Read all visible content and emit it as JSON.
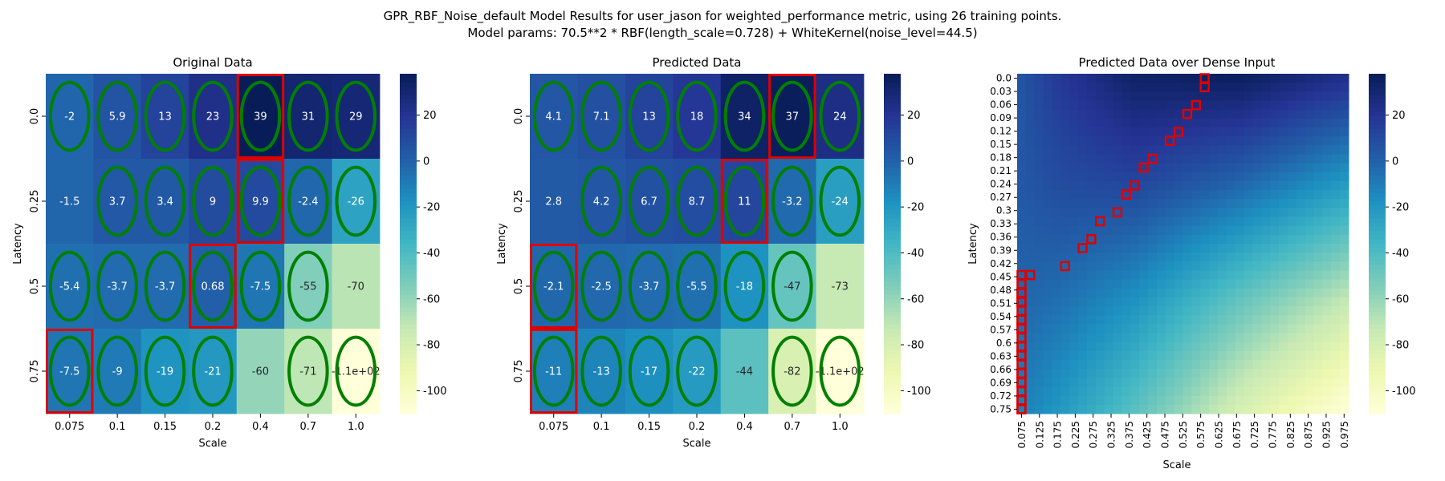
{
  "figure": {
    "title_line1": "GPR_RBF_Noise_default Model Results for user_jason for weighted_performance metric, using 26 training points.",
    "title_line2": "Model params: 70.5**2 * RBF(length_scale=0.728) + WhiteKernel(noise_level=44.5)"
  },
  "colors": {
    "colormap": "YlGnBu",
    "highlight_ellipse": "#008000",
    "highlight_box": "#e00000",
    "text_light": "#ffffff",
    "text_dark": "#262626"
  },
  "chart_data": [
    {
      "type": "heatmap",
      "title": "Original Data",
      "xlabel": "Scale",
      "ylabel": "Latency",
      "x": [
        "0.075",
        "0.1",
        "0.15",
        "0.2",
        "0.4",
        "0.7",
        "1.0"
      ],
      "y": [
        "0.0",
        "0.25",
        "0.5",
        "0.75"
      ],
      "values": [
        [
          -2,
          5.9,
          13,
          23,
          39,
          31,
          29
        ],
        [
          -1.5,
          3.7,
          3.4,
          9,
          9.9,
          -2.4,
          -26
        ],
        [
          -5.4,
          -3.7,
          -3.7,
          0.68,
          -7.5,
          -55,
          -70
        ],
        [
          -7.5,
          -9,
          -19,
          -21,
          -60,
          -71,
          -110
        ]
      ],
      "labels": [
        [
          "-2",
          "5.9",
          "13",
          "23",
          "39",
          "31",
          "29"
        ],
        [
          "-1.5",
          "3.7",
          "3.4",
          "9",
          "9.9",
          "-2.4",
          "-26"
        ],
        [
          "-5.4",
          "-3.7",
          "-3.7",
          "0.68",
          "-7.5",
          "-55",
          "-70"
        ],
        [
          "-7.5",
          "-9",
          "-19",
          "-21",
          "-60",
          "-71",
          "-1.1e+02"
        ]
      ],
      "ellipses": [
        [
          0,
          0
        ],
        [
          0,
          1
        ],
        [
          0,
          2
        ],
        [
          0,
          3
        ],
        [
          0,
          4
        ],
        [
          0,
          5
        ],
        [
          0,
          6
        ],
        [
          1,
          1
        ],
        [
          1,
          2
        ],
        [
          1,
          3
        ],
        [
          1,
          4
        ],
        [
          1,
          5
        ],
        [
          1,
          6
        ],
        [
          2,
          0
        ],
        [
          2,
          1
        ],
        [
          2,
          2
        ],
        [
          2,
          3
        ],
        [
          2,
          4
        ],
        [
          2,
          5
        ],
        [
          3,
          0
        ],
        [
          3,
          1
        ],
        [
          3,
          2
        ],
        [
          3,
          3
        ],
        [
          3,
          5
        ],
        [
          3,
          6
        ]
      ],
      "boxes": [
        [
          0,
          4
        ],
        [
          1,
          4
        ],
        [
          2,
          3
        ],
        [
          3,
          0
        ]
      ],
      "colorbar": {
        "ticks": [
          20,
          0,
          -20,
          -40,
          -60,
          -80,
          -100
        ],
        "range": [
          -110,
          38
        ]
      }
    },
    {
      "type": "heatmap",
      "title": "Predicted Data",
      "xlabel": "Scale",
      "ylabel": "Latency",
      "x": [
        "0.075",
        "0.1",
        "0.15",
        "0.2",
        "0.4",
        "0.7",
        "1.0"
      ],
      "y": [
        "0.0",
        "0.25",
        "0.5",
        "0.75"
      ],
      "values": [
        [
          4.1,
          7.1,
          13,
          18,
          34,
          37,
          24
        ],
        [
          2.8,
          4.2,
          6.7,
          8.7,
          11,
          -3.2,
          -24
        ],
        [
          -2.1,
          -2.5,
          -3.7,
          -5.5,
          -18,
          -47,
          -73
        ],
        [
          -11,
          -13,
          -17,
          -22,
          -44,
          -82,
          -110
        ]
      ],
      "labels": [
        [
          "4.1",
          "7.1",
          "13",
          "18",
          "34",
          "37",
          "24"
        ],
        [
          "2.8",
          "4.2",
          "6.7",
          "8.7",
          "11",
          "-3.2",
          "-24"
        ],
        [
          "-2.1",
          "-2.5",
          "-3.7",
          "-5.5",
          "-18",
          "-47",
          "-73"
        ],
        [
          "-11",
          "-13",
          "-17",
          "-22",
          "-44",
          "-82",
          "-1.1e+02"
        ]
      ],
      "ellipses": [
        [
          0,
          0
        ],
        [
          0,
          1
        ],
        [
          0,
          2
        ],
        [
          0,
          3
        ],
        [
          0,
          4
        ],
        [
          0,
          5
        ],
        [
          0,
          6
        ],
        [
          1,
          1
        ],
        [
          1,
          2
        ],
        [
          1,
          3
        ],
        [
          1,
          4
        ],
        [
          1,
          5
        ],
        [
          1,
          6
        ],
        [
          2,
          0
        ],
        [
          2,
          1
        ],
        [
          2,
          2
        ],
        [
          2,
          3
        ],
        [
          2,
          4
        ],
        [
          2,
          5
        ],
        [
          3,
          0
        ],
        [
          3,
          1
        ],
        [
          3,
          2
        ],
        [
          3,
          3
        ],
        [
          3,
          5
        ],
        [
          3,
          6
        ]
      ],
      "boxes": [
        [
          0,
          5
        ],
        [
          1,
          4
        ],
        [
          2,
          0
        ],
        [
          3,
          0
        ]
      ],
      "colorbar": {
        "ticks": [
          20,
          0,
          -20,
          -40,
          -60,
          -80,
          -100
        ],
        "range": [
          -110,
          38
        ]
      }
    },
    {
      "type": "heatmap",
      "title": "Predicted Data over Dense Input",
      "xlabel": "Scale",
      "ylabel": "Latency",
      "x": [
        "0.075",
        "0.125",
        "0.175",
        "0.225",
        "0.275",
        "0.325",
        "0.375",
        "0.425",
        "0.475",
        "0.525",
        "0.575",
        "0.625",
        "0.675",
        "0.725",
        "0.775",
        "0.825",
        "0.875",
        "0.925",
        "0.975"
      ],
      "y": [
        "0.0",
        "0.03",
        "0.06",
        "0.09",
        "0.12",
        "0.15",
        "0.18",
        "0.21",
        "0.24",
        "0.27",
        "0.3",
        "0.33",
        "0.36",
        "0.39",
        "0.42",
        "0.45",
        "0.48",
        "0.51",
        "0.54",
        "0.57",
        "0.6",
        "0.63",
        "0.66",
        "0.69",
        "0.72",
        "0.75"
      ],
      "x_range": [
        0.075,
        1.0
      ],
      "y_range": [
        0.0,
        0.75
      ],
      "grid": {
        "cols": 38,
        "rows": 38
      },
      "surface_knots": {
        "x": [
          0.075,
          0.1,
          0.15,
          0.2,
          0.4,
          0.7,
          1.0
        ],
        "y": [
          0.0,
          0.25,
          0.5,
          0.75
        ],
        "values": [
          [
            4.1,
            7.1,
            13,
            18,
            34,
            37,
            24
          ],
          [
            2.8,
            4.2,
            6.7,
            8.7,
            11,
            -3.2,
            -24
          ],
          [
            -2.1,
            -2.5,
            -3.7,
            -5.5,
            -18,
            -47,
            -73
          ],
          [
            -11,
            -13,
            -17,
            -22,
            -44,
            -82,
            -110
          ]
        ]
      },
      "max_path": [
        [
          0.0,
          0.6
        ],
        [
          0.03,
          0.59
        ],
        [
          0.06,
          0.575
        ],
        [
          0.09,
          0.55
        ],
        [
          0.12,
          0.52
        ],
        [
          0.15,
          0.49
        ],
        [
          0.18,
          0.46
        ],
        [
          0.21,
          0.435
        ],
        [
          0.24,
          0.41
        ],
        [
          0.27,
          0.38
        ],
        [
          0.3,
          0.35
        ],
        [
          0.33,
          0.31
        ],
        [
          0.36,
          0.28
        ],
        [
          0.39,
          0.25
        ],
        [
          0.42,
          0.2
        ],
        [
          0.45,
          0.1
        ],
        [
          0.48,
          0.075
        ],
        [
          0.51,
          0.075
        ],
        [
          0.54,
          0.075
        ],
        [
          0.57,
          0.075
        ],
        [
          0.6,
          0.075
        ],
        [
          0.63,
          0.075
        ],
        [
          0.66,
          0.075
        ],
        [
          0.69,
          0.075
        ],
        [
          0.72,
          0.075
        ],
        [
          0.75,
          0.075
        ]
      ],
      "colorbar": {
        "ticks": [
          20,
          0,
          -20,
          -40,
          -60,
          -80,
          -100
        ],
        "range": [
          -110,
          38
        ]
      }
    }
  ]
}
